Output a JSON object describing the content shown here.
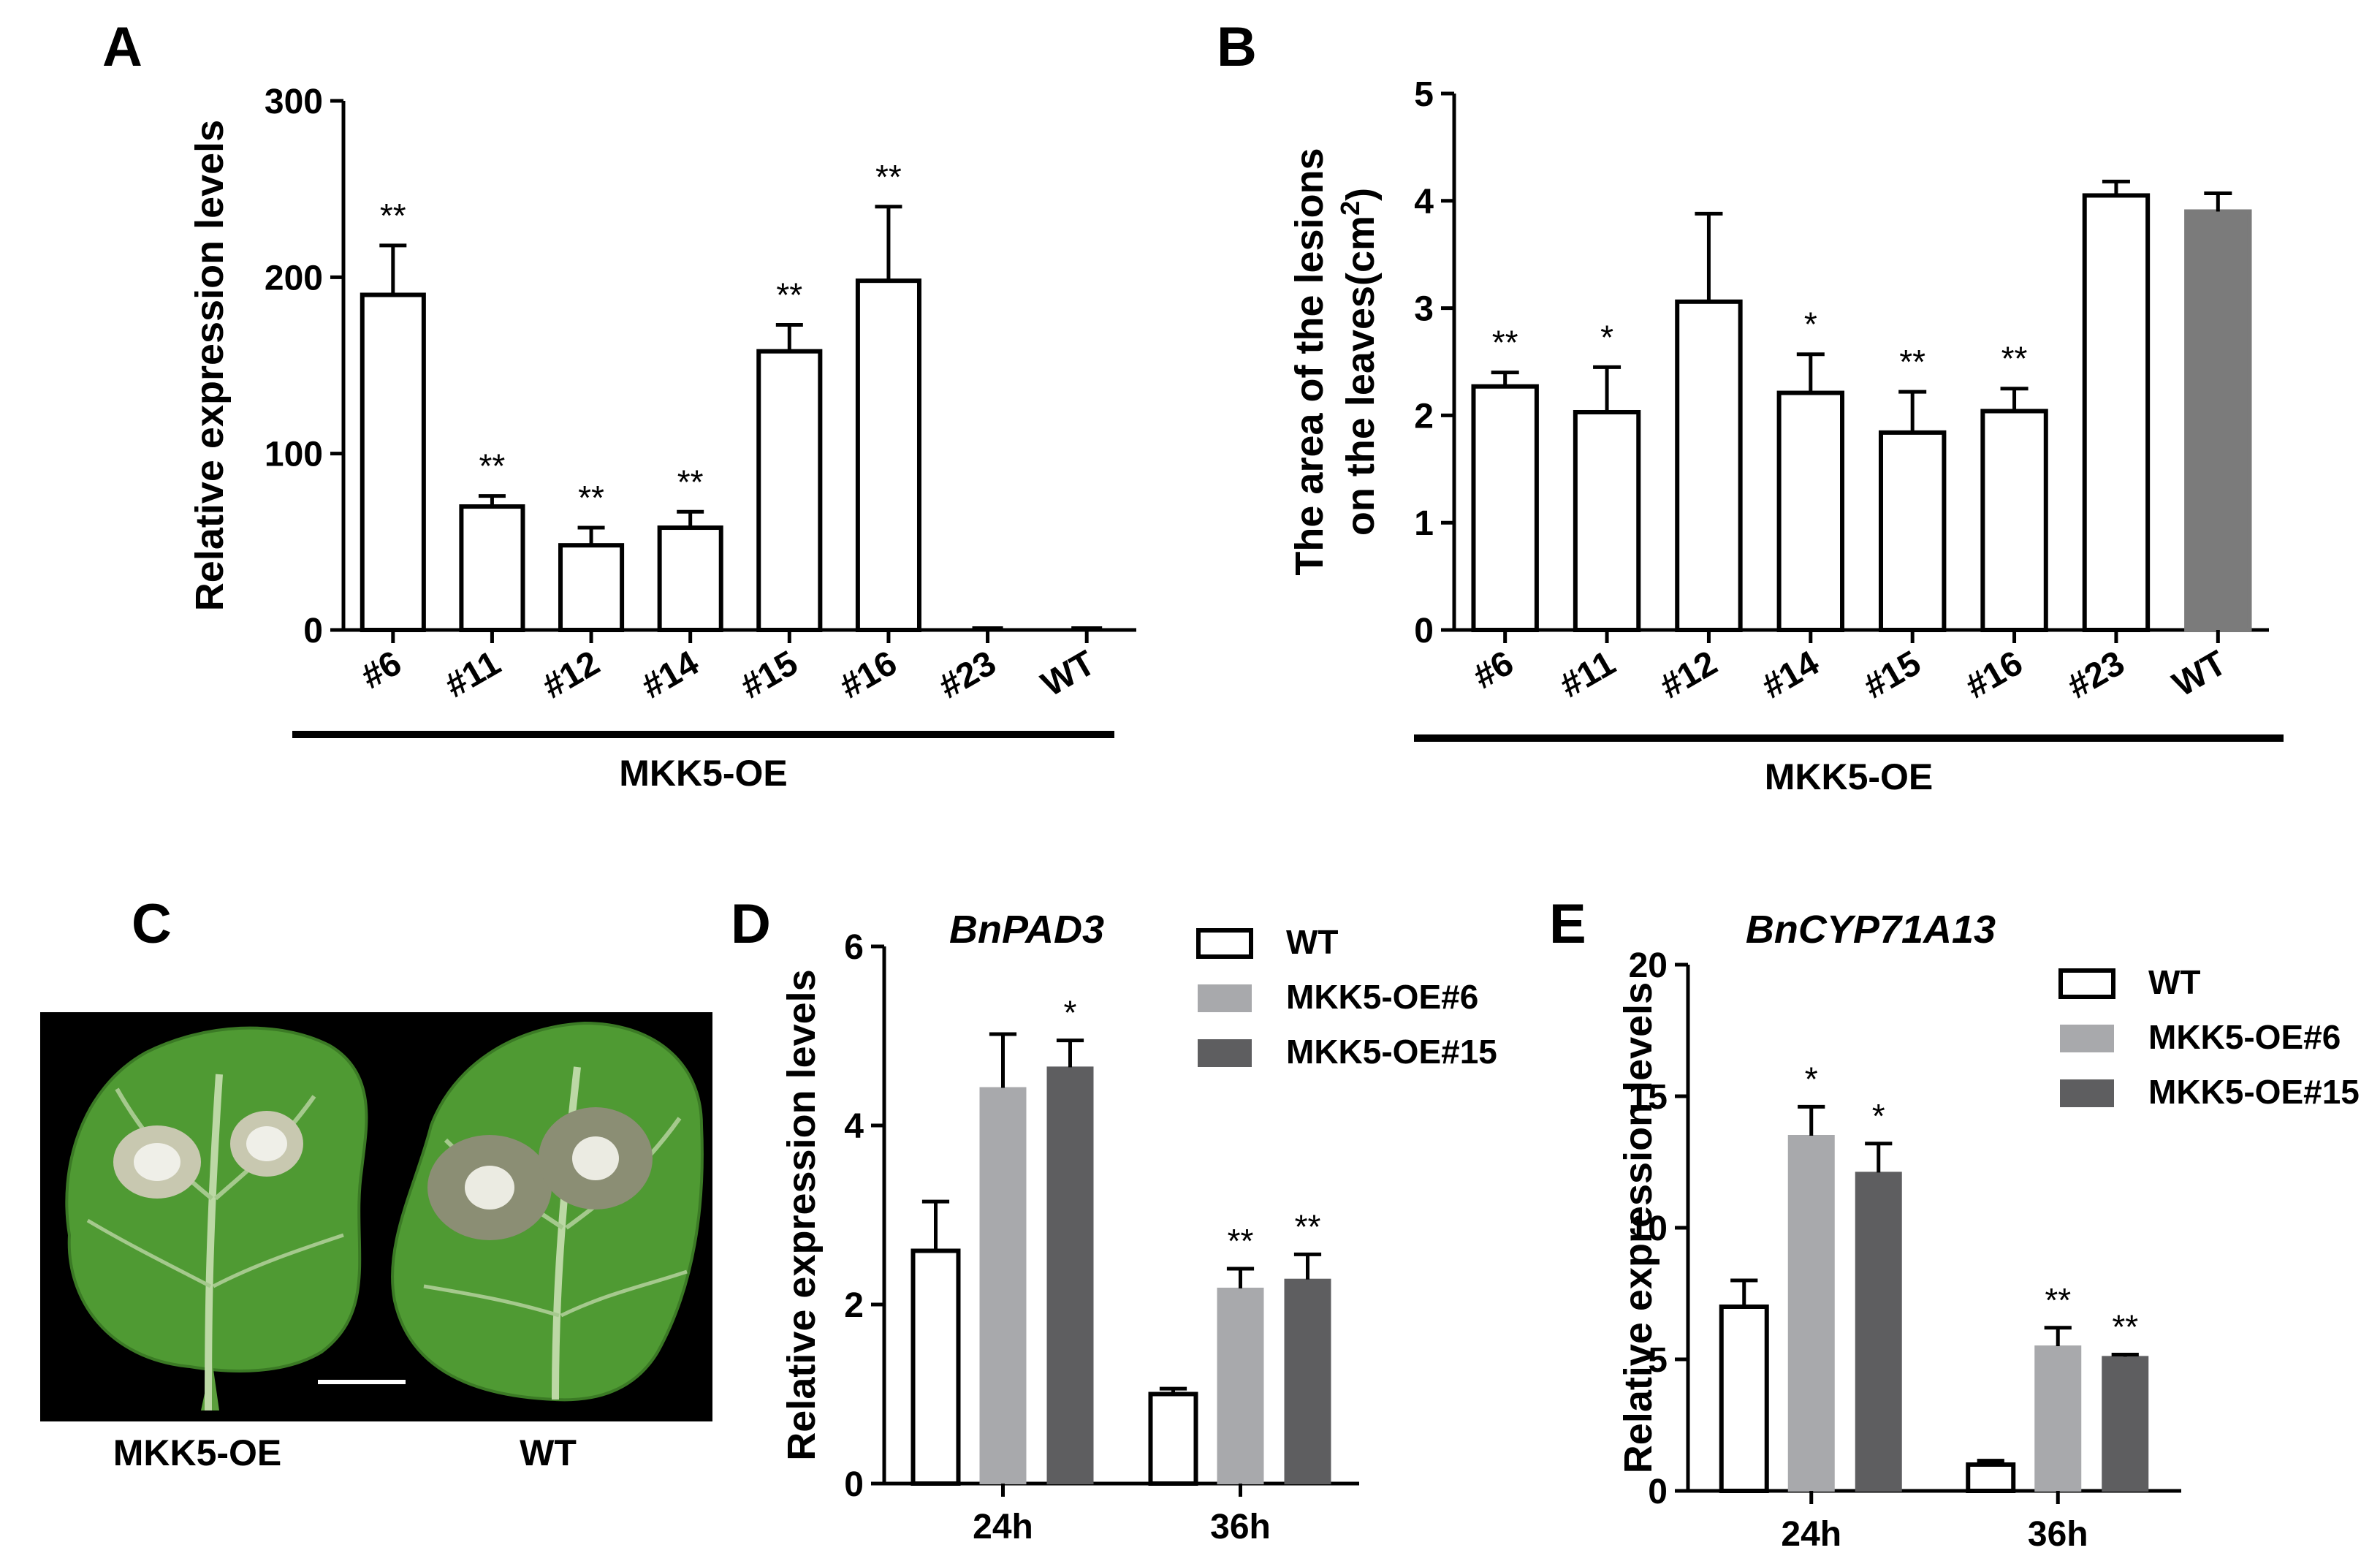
{
  "colors": {
    "wt": "#ffffff",
    "oe6": "#a8a9ac",
    "oe15": "#5e5e60",
    "wt_gray": "#7b7b7b",
    "leaf": "#4e9a34"
  },
  "panels": {
    "A": "A",
    "B": "B",
    "C": "C",
    "D": "D",
    "E": "E"
  },
  "panel_c": {
    "label_left": "MKK5-OE",
    "label_right": "WT",
    "image": "leaf-photo"
  },
  "chart_data": [
    {
      "id": "A",
      "type": "bar",
      "categories": [
        "#6",
        "#11",
        "#12",
        "#14",
        "#15",
        "#16",
        "#23",
        "WT"
      ],
      "values": [
        190,
        70,
        48,
        58,
        158,
        198,
        1,
        1
      ],
      "errors": [
        28,
        6,
        10,
        9,
        15,
        42,
        0.5,
        0.5
      ],
      "significance": [
        "**",
        "**",
        "**",
        "**",
        "**",
        "**",
        "",
        ""
      ],
      "ylabel": "Relative expression levels",
      "ylim": [
        0,
        300
      ],
      "yticks": [
        0,
        100,
        200,
        300
      ],
      "group_label": "MKK5-OE"
    },
    {
      "id": "B",
      "type": "bar",
      "categories": [
        "#6",
        "#11",
        "#12",
        "#14",
        "#15",
        "#16",
        "#23",
        "WT"
      ],
      "values": [
        2.27,
        2.03,
        3.06,
        2.21,
        1.84,
        2.04,
        4.05,
        3.9
      ],
      "errors": [
        0.13,
        0.42,
        0.82,
        0.36,
        0.38,
        0.21,
        0.13,
        0.17
      ],
      "significance": [
        "**",
        "*",
        "",
        "*",
        "**",
        "**",
        "",
        ""
      ],
      "ylabel_line1": "The area of the lesions",
      "ylabel_line2": "on the leaves(cm",
      "ylabel_sup": "2",
      "ylabel_close": ")",
      "ylim": [
        0,
        5
      ],
      "yticks": [
        0,
        1,
        2,
        3,
        4,
        5
      ],
      "group_label": "MKK5-OE"
    },
    {
      "id": "D",
      "type": "bar",
      "title": "BnPAD3",
      "categories": [
        "24h",
        "36h"
      ],
      "series": [
        {
          "name": "WT",
          "values": [
            2.6,
            1.0
          ],
          "errors": [
            0.55,
            0.06
          ],
          "significance": [
            "",
            ""
          ]
        },
        {
          "name": "MKK5-OE#6",
          "values": [
            4.42,
            2.18
          ],
          "errors": [
            0.6,
            0.22
          ],
          "significance": [
            "",
            "**"
          ]
        },
        {
          "name": "MKK5-OE#15",
          "values": [
            4.65,
            2.28
          ],
          "errors": [
            0.3,
            0.28
          ],
          "significance": [
            "*",
            "**"
          ]
        }
      ],
      "ylabel": "Relative expression levels",
      "ylim": [
        0,
        6
      ],
      "yticks": [
        0,
        2,
        4,
        6
      ]
    },
    {
      "id": "E",
      "type": "bar",
      "title": "BnCYP71A13",
      "categories": [
        "24h",
        "36h"
      ],
      "series": [
        {
          "name": "WT",
          "values": [
            7.0,
            1.0
          ],
          "errors": [
            1.0,
            0.15
          ],
          "significance": [
            "",
            ""
          ]
        },
        {
          "name": "MKK5-OE#6",
          "values": [
            13.5,
            5.5
          ],
          "errors": [
            1.1,
            0.7
          ],
          "significance": [
            "*",
            "**"
          ]
        },
        {
          "name": "MKK5-OE#15",
          "values": [
            12.1,
            5.1
          ],
          "errors": [
            1.1,
            0.08
          ],
          "significance": [
            "*",
            "**"
          ]
        }
      ],
      "ylabel": "Relative expression levels",
      "ylim": [
        0,
        20
      ],
      "yticks": [
        0,
        5,
        10,
        15,
        20
      ]
    }
  ]
}
